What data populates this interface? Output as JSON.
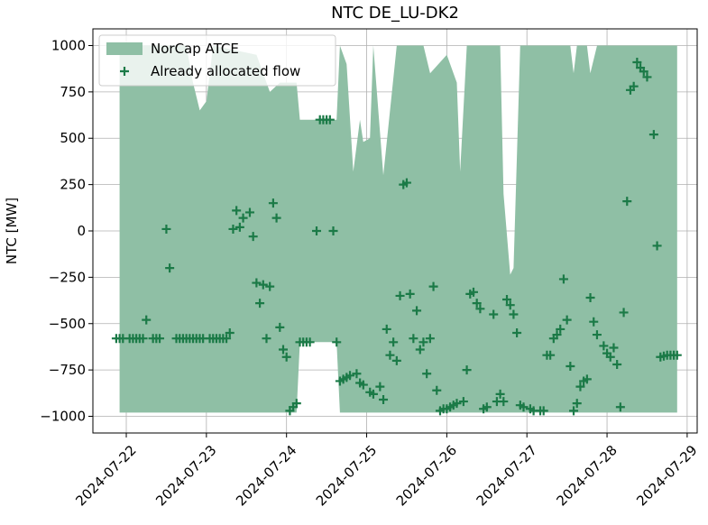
{
  "chart_data": {
    "type": "area_scatter",
    "title": "NTC DE_LU-DK2",
    "ylabel": "NTC [MW]",
    "xlim": [
      "2024-07-21T14:00",
      "2024-07-29T03:00"
    ],
    "xticks": [
      "2024-07-22",
      "2024-07-23",
      "2024-07-24",
      "2024-07-25",
      "2024-07-26",
      "2024-07-27",
      "2024-07-28",
      "2024-07-29"
    ],
    "ylim": [
      -1090,
      1090
    ],
    "yticks": [
      {
        "value": -1000,
        "label": "−1000"
      },
      {
        "value": -750,
        "label": "−750"
      },
      {
        "value": -500,
        "label": "−500"
      },
      {
        "value": -250,
        "label": "−250"
      },
      0,
      250,
      500,
      750,
      1000
    ],
    "grid": true,
    "legend": "upper left",
    "series": [
      {
        "name": "NorCap ATCE",
        "type": "area",
        "color": "#8fbfa5",
        "x": [
          "2024-07-21T22:00",
          "2024-07-22T18:00",
          "2024-07-22T20:00",
          "2024-07-22T22:00",
          "2024-07-23T00:00",
          "2024-07-23T02:00",
          "2024-07-23T15:00",
          "2024-07-23T19:00",
          "2024-07-23T22:00",
          "2024-07-24T03:00",
          "2024-07-24T04:00",
          "2024-07-24T15:00",
          "2024-07-24T16:00",
          "2024-07-24T18:00",
          "2024-07-24T20:00",
          "2024-07-24T22:00",
          "2024-07-24T23:00",
          "2024-07-25T01:00",
          "2024-07-25T02:00",
          "2024-07-25T05:00",
          "2024-07-25T09:00",
          "2024-07-25T17:00",
          "2024-07-25T19:00",
          "2024-07-26T00:00",
          "2024-07-26T03:00",
          "2024-07-26T04:00",
          "2024-07-26T06:00",
          "2024-07-26T16:00",
          "2024-07-26T17:00",
          "2024-07-26T19:00",
          "2024-07-26T20:00",
          "2024-07-26T22:00",
          "2024-07-27T13:00",
          "2024-07-27T14:00",
          "2024-07-27T15:00",
          "2024-07-27T18:00",
          "2024-07-27T19:00",
          "2024-07-27T21:00",
          "2024-07-28T21:00"
        ],
        "values": [
          1000,
          1000,
          800,
          650,
          700,
          1000,
          950,
          750,
          800,
          800,
          600,
          600,
          1000,
          900,
          320,
          600,
          480,
          500,
          1000,
          300,
          1000,
          1000,
          850,
          950,
          800,
          320,
          1000,
          1000,
          200,
          -236,
          -200,
          1000,
          1000,
          850,
          1000,
          1000,
          850,
          1000,
          1000
        ],
        "lower": [
          -980,
          -980,
          -980,
          -980,
          -980,
          -980,
          -980,
          -980,
          -980,
          -980,
          -600,
          -600,
          -980,
          -980,
          -980,
          -980,
          -980,
          -980,
          -980,
          -980,
          -980,
          -980,
          -980,
          -980,
          -980,
          -980,
          -980,
          -980,
          -980,
          -980,
          -980,
          -980,
          -980,
          -980,
          -980,
          -980,
          -980,
          -980,
          -980
        ]
      },
      {
        "name": "Already allocated flow",
        "type": "scatter",
        "color": "#1b7a47",
        "x": [
          "2024-07-21T21:00",
          "2024-07-21T22:00",
          "2024-07-21T23:00",
          "2024-07-22T01:00",
          "2024-07-22T02:00",
          "2024-07-22T03:00",
          "2024-07-22T04:00",
          "2024-07-22T05:00",
          "2024-07-22T06:00",
          "2024-07-22T08:00",
          "2024-07-22T09:00",
          "2024-07-22T10:00",
          "2024-07-22T12:00",
          "2024-07-22T13:00",
          "2024-07-22T15:00",
          "2024-07-22T16:00",
          "2024-07-22T17:00",
          "2024-07-22T18:00",
          "2024-07-22T19:00",
          "2024-07-22T20:00",
          "2024-07-22T21:00",
          "2024-07-22T22:00",
          "2024-07-22T23:00",
          "2024-07-23T01:00",
          "2024-07-23T02:00",
          "2024-07-23T03:00",
          "2024-07-23T04:00",
          "2024-07-23T05:00",
          "2024-07-23T06:00",
          "2024-07-23T07:00",
          "2024-07-23T08:00",
          "2024-07-23T09:00",
          "2024-07-23T10:00",
          "2024-07-23T11:00",
          "2024-07-23T13:00",
          "2024-07-23T14:00",
          "2024-07-23T15:00",
          "2024-07-23T16:00",
          "2024-07-23T17:00",
          "2024-07-23T18:00",
          "2024-07-23T19:00",
          "2024-07-23T20:00",
          "2024-07-23T21:00",
          "2024-07-23T22:00",
          "2024-07-23T23:00",
          "2024-07-24T00:00",
          "2024-07-24T01:00",
          "2024-07-24T02:00",
          "2024-07-24T03:00",
          "2024-07-24T04:00",
          "2024-07-24T05:00",
          "2024-07-24T06:00",
          "2024-07-24T07:00",
          "2024-07-24T09:00",
          "2024-07-24T10:00",
          "2024-07-24T11:00",
          "2024-07-24T12:00",
          "2024-07-24T13:00",
          "2024-07-24T14:00",
          "2024-07-24T15:00",
          "2024-07-24T16:00",
          "2024-07-24T17:00",
          "2024-07-24T18:00",
          "2024-07-24T19:00",
          "2024-07-24T21:00",
          "2024-07-24T22:00",
          "2024-07-24T23:00",
          "2024-07-25T01:00",
          "2024-07-25T02:00",
          "2024-07-25T04:00",
          "2024-07-25T05:00",
          "2024-07-25T06:00",
          "2024-07-25T07:00",
          "2024-07-25T08:00",
          "2024-07-25T09:00",
          "2024-07-25T10:00",
          "2024-07-25T11:00",
          "2024-07-25T12:00",
          "2024-07-25T13:00",
          "2024-07-25T14:00",
          "2024-07-25T15:00",
          "2024-07-25T16:00",
          "2024-07-25T17:00",
          "2024-07-25T18:00",
          "2024-07-25T19:00",
          "2024-07-25T20:00",
          "2024-07-25T21:00",
          "2024-07-25T22:00",
          "2024-07-25T23:00",
          "2024-07-26T00:00",
          "2024-07-26T01:00",
          "2024-07-26T02:00",
          "2024-07-26T03:00",
          "2024-07-26T05:00",
          "2024-07-26T06:00",
          "2024-07-26T07:00",
          "2024-07-26T08:00",
          "2024-07-26T09:00",
          "2024-07-26T10:00",
          "2024-07-26T11:00",
          "2024-07-26T12:00",
          "2024-07-26T14:00",
          "2024-07-26T15:00",
          "2024-07-26T16:00",
          "2024-07-26T17:00",
          "2024-07-26T18:00",
          "2024-07-26T19:00",
          "2024-07-26T20:00",
          "2024-07-26T21:00",
          "2024-07-26T22:00",
          "2024-07-26T23:00",
          "2024-07-27T01:00",
          "2024-07-27T02:00",
          "2024-07-27T04:00",
          "2024-07-27T05:00",
          "2024-07-27T06:00",
          "2024-07-27T07:00",
          "2024-07-27T08:00",
          "2024-07-27T09:00",
          "2024-07-27T10:00",
          "2024-07-27T11:00",
          "2024-07-27T12:00",
          "2024-07-27T13:00",
          "2024-07-27T14:00",
          "2024-07-27T15:00",
          "2024-07-27T16:00",
          "2024-07-27T17:00",
          "2024-07-27T18:00",
          "2024-07-27T19:00",
          "2024-07-27T20:00",
          "2024-07-27T21:00",
          "2024-07-27T23:00",
          "2024-07-28T00:00",
          "2024-07-28T01:00",
          "2024-07-28T02:00",
          "2024-07-28T03:00",
          "2024-07-28T04:00",
          "2024-07-28T05:00",
          "2024-07-28T06:00",
          "2024-07-28T07:00",
          "2024-07-28T08:00",
          "2024-07-28T09:00",
          "2024-07-28T10:00",
          "2024-07-28T11:00",
          "2024-07-28T12:00",
          "2024-07-28T14:00",
          "2024-07-28T15:00",
          "2024-07-28T16:00",
          "2024-07-28T17:00",
          "2024-07-28T18:00",
          "2024-07-28T19:00",
          "2024-07-28T20:00",
          "2024-07-28T21:00"
        ],
        "values": [
          -580,
          -580,
          -580,
          -580,
          -580,
          -580,
          -580,
          -580,
          -480,
          -580,
          -580,
          -580,
          10,
          -200,
          -580,
          -580,
          -580,
          -580,
          -580,
          -580,
          -580,
          -580,
          -580,
          -580,
          -580,
          -580,
          -580,
          -580,
          -580,
          -550,
          10,
          110,
          20,
          70,
          100,
          -30,
          -280,
          -390,
          -290,
          -580,
          -300,
          150,
          70,
          -520,
          -640,
          -680,
          -970,
          -950,
          -930,
          -600,
          -600,
          -600,
          -600,
          0,
          600,
          600,
          600,
          600,
          0,
          -600,
          -810,
          -800,
          -790,
          -780,
          -770,
          -820,
          -830,
          -870,
          -880,
          -840,
          -910,
          -530,
          -670,
          -600,
          -700,
          -350,
          250,
          260,
          -340,
          -580,
          -430,
          -640,
          -600,
          -770,
          -580,
          -300,
          -860,
          -970,
          -960,
          -960,
          -950,
          -940,
          -930,
          -920,
          -750,
          -340,
          -330,
          -390,
          -420,
          -960,
          -950,
          -450,
          -920,
          -880,
          -920,
          -370,
          -400,
          -450,
          -550,
          -940,
          -950,
          -960,
          -970,
          -970,
          -970,
          -670,
          -670,
          -580,
          -560,
          -530,
          -260,
          -480,
          -730,
          -970,
          -930,
          -840,
          -810,
          -800,
          -360,
          -490,
          -560,
          -620,
          -660,
          -680,
          -630,
          -720,
          -950,
          -440,
          160,
          760,
          780,
          910,
          880,
          860,
          830,
          520,
          -80,
          -680,
          -675,
          -670,
          -670,
          -670,
          -670
        ]
      }
    ]
  }
}
